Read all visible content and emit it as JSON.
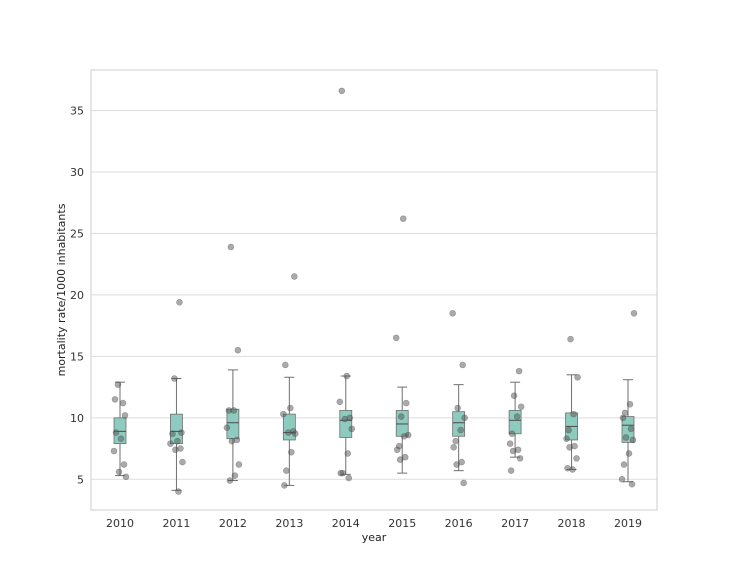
{
  "chart_data": {
    "type": "box",
    "title": "",
    "xlabel": "year",
    "ylabel": "mortality rate/1000 inhabitants",
    "categories": [
      "2010",
      "2011",
      "2012",
      "2013",
      "2014",
      "2015",
      "2016",
      "2017",
      "2018",
      "2019"
    ],
    "yticks": [
      5,
      10,
      15,
      20,
      25,
      30,
      35
    ],
    "ylim": [
      2.5,
      38.3
    ],
    "grid": "horizontal",
    "colors": {
      "box_fill": "#8ecbbf",
      "box_edge": "#6f6f6f",
      "points": "#555555",
      "grid": "#dddddd",
      "frame": "#cccccc"
    },
    "boxes": [
      {
        "year": "2010",
        "whisker_low": 5.3,
        "q1": 7.9,
        "median": 8.9,
        "q3": 10.0,
        "whisker_high": 12.9
      },
      {
        "year": "2011",
        "whisker_low": 4.1,
        "q1": 7.9,
        "median": 8.9,
        "q3": 10.3,
        "whisker_high": 13.2
      },
      {
        "year": "2012",
        "whisker_low": 4.9,
        "q1": 8.3,
        "median": 9.6,
        "q3": 10.7,
        "whisker_high": 13.9
      },
      {
        "year": "2013",
        "whisker_low": 4.5,
        "q1": 8.2,
        "median": 8.8,
        "q3": 10.3,
        "whisker_high": 13.3
      },
      {
        "year": "2014",
        "whisker_low": 5.4,
        "q1": 8.4,
        "median": 9.8,
        "q3": 10.6,
        "whisker_high": 13.4
      },
      {
        "year": "2015",
        "whisker_low": 5.5,
        "q1": 8.5,
        "median": 9.5,
        "q3": 10.6,
        "whisker_high": 12.5
      },
      {
        "year": "2016",
        "whisker_low": 5.7,
        "q1": 8.5,
        "median": 9.6,
        "q3": 10.5,
        "whisker_high": 12.7
      },
      {
        "year": "2017",
        "whisker_low": 6.8,
        "q1": 8.7,
        "median": 9.8,
        "q3": 10.6,
        "whisker_high": 12.9
      },
      {
        "year": "2018",
        "whisker_low": 5.8,
        "q1": 8.2,
        "median": 9.3,
        "q3": 10.4,
        "whisker_high": 13.5
      },
      {
        "year": "2019",
        "whisker_low": 4.8,
        "q1": 8.0,
        "median": 9.4,
        "q3": 10.1,
        "whisker_high": 13.1
      }
    ],
    "points": [
      {
        "year": "2010",
        "values": [
          11.5,
          11.2,
          12.7,
          10.2,
          8.8,
          8.3,
          7.3,
          6.2,
          5.6,
          5.2
        ]
      },
      {
        "year": "2011",
        "values": [
          19.4,
          13.2,
          8.8,
          8.7,
          8.1,
          7.9,
          7.5,
          7.4,
          6.4,
          4.0
        ]
      },
      {
        "year": "2012",
        "values": [
          23.9,
          15.5,
          10.6,
          10.6,
          9.2,
          8.2,
          8.1,
          6.2,
          5.3,
          4.9
        ]
      },
      {
        "year": "2013",
        "values": [
          21.5,
          14.3,
          10.8,
          10.3,
          8.9,
          8.8,
          8.7,
          7.2,
          5.7,
          4.5
        ]
      },
      {
        "year": "2014",
        "values": [
          36.6,
          13.4,
          11.3,
          10.0,
          9.9,
          9.1,
          7.1,
          5.5,
          5.5,
          5.1
        ]
      },
      {
        "year": "2015",
        "values": [
          26.2,
          16.5,
          11.2,
          10.1,
          8.6,
          8.5,
          7.7,
          7.4,
          6.8,
          6.6
        ]
      },
      {
        "year": "2016",
        "values": [
          18.5,
          14.3,
          10.8,
          10.0,
          9.0,
          8.1,
          7.6,
          6.4,
          6.2,
          4.7
        ]
      },
      {
        "year": "2017",
        "values": [
          13.8,
          11.8,
          10.9,
          10.1,
          8.7,
          7.9,
          7.4,
          7.3,
          6.7,
          5.7
        ]
      },
      {
        "year": "2018",
        "values": [
          16.4,
          13.3,
          10.3,
          9.0,
          8.3,
          7.7,
          7.6,
          6.7,
          5.9,
          5.8
        ]
      },
      {
        "year": "2019",
        "values": [
          18.5,
          11.1,
          10.4,
          10.0,
          9.1,
          8.4,
          8.2,
          6.2,
          7.1,
          5.0,
          4.6
        ]
      }
    ]
  }
}
